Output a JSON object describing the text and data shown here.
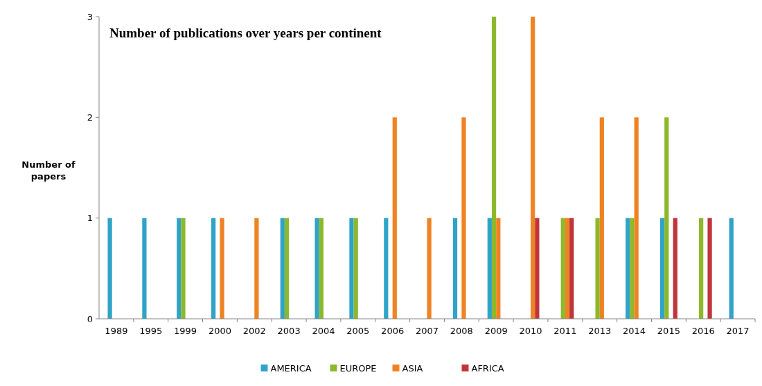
{
  "chart_data": {
    "type": "bar",
    "title": "Number of publications over years per continent",
    "ylabel": "Number of papers",
    "categories": [
      "1989",
      "1995",
      "1999",
      "2000",
      "2002",
      "2003",
      "2004",
      "2005",
      "2006",
      "2007",
      "2008",
      "2009",
      "2010",
      "2011",
      "2013",
      "2014",
      "2015",
      "2016",
      "2017"
    ],
    "series": [
      {
        "name": "AMERICA",
        "color": "#2fa3c8",
        "values": [
          1,
          1,
          1,
          1,
          0,
          1,
          1,
          1,
          1,
          0,
          1,
          1,
          0,
          0,
          0,
          1,
          1,
          0,
          1
        ]
      },
      {
        "name": "EUROPE",
        "color": "#8cb92c",
        "values": [
          0,
          0,
          1,
          0,
          0,
          1,
          1,
          1,
          0,
          0,
          0,
          3,
          0,
          1,
          1,
          1,
          2,
          1,
          0
        ]
      },
      {
        "name": "ASIA",
        "color": "#ef8323",
        "values": [
          0,
          0,
          0,
          1,
          1,
          0,
          0,
          0,
          2,
          1,
          2,
          1,
          3,
          1,
          2,
          2,
          0,
          0,
          0
        ]
      },
      {
        "name": "AFRICA",
        "color": "#c0353b",
        "values": [
          0,
          0,
          0,
          0,
          0,
          0,
          0,
          0,
          0,
          0,
          0,
          0,
          1,
          1,
          0,
          0,
          1,
          1,
          0
        ]
      }
    ],
    "ylim": [
      0,
      3
    ],
    "yticks": [
      0,
      1,
      2,
      3
    ],
    "grid": false,
    "legend": "bottom"
  }
}
